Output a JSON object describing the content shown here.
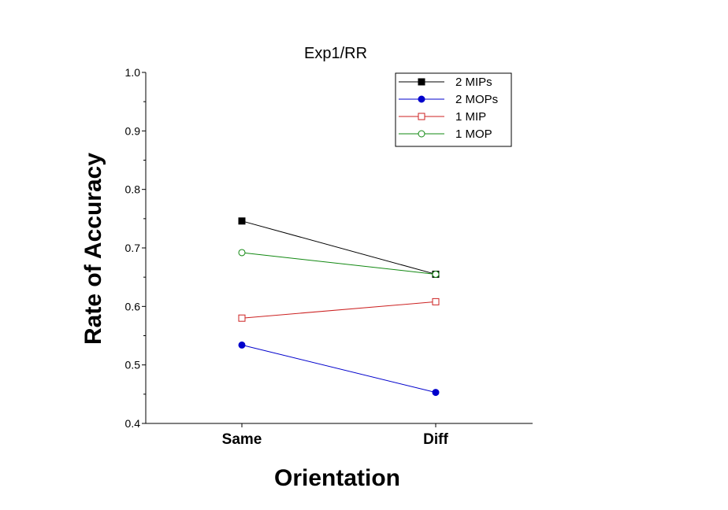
{
  "chart_data": {
    "type": "line",
    "title": "Exp1/RR",
    "xlabel": "Orientation",
    "ylabel": "Rate of Accuracy",
    "categories": [
      "Same",
      "Diff"
    ],
    "ylim": [
      0.4,
      1.0
    ],
    "yticks": [
      "0.4",
      "0.5",
      "0.6",
      "0.7",
      "0.8",
      "0.9",
      "1.0"
    ],
    "grid": false,
    "legend_position": "top-right",
    "series": [
      {
        "name": "2 MIPs",
        "values": [
          0.746,
          0.655
        ],
        "color": "#000000",
        "marker": "square-filled"
      },
      {
        "name": "2 MOPs",
        "values": [
          0.534,
          0.453
        ],
        "color": "#0000cc",
        "marker": "circle-filled"
      },
      {
        "name": "1 MIP",
        "values": [
          0.58,
          0.608
        ],
        "color": "#cc2222",
        "marker": "square-open"
      },
      {
        "name": "1 MOP",
        "values": [
          0.692,
          0.655
        ],
        "color": "#118811",
        "marker": "circle-open"
      }
    ]
  }
}
